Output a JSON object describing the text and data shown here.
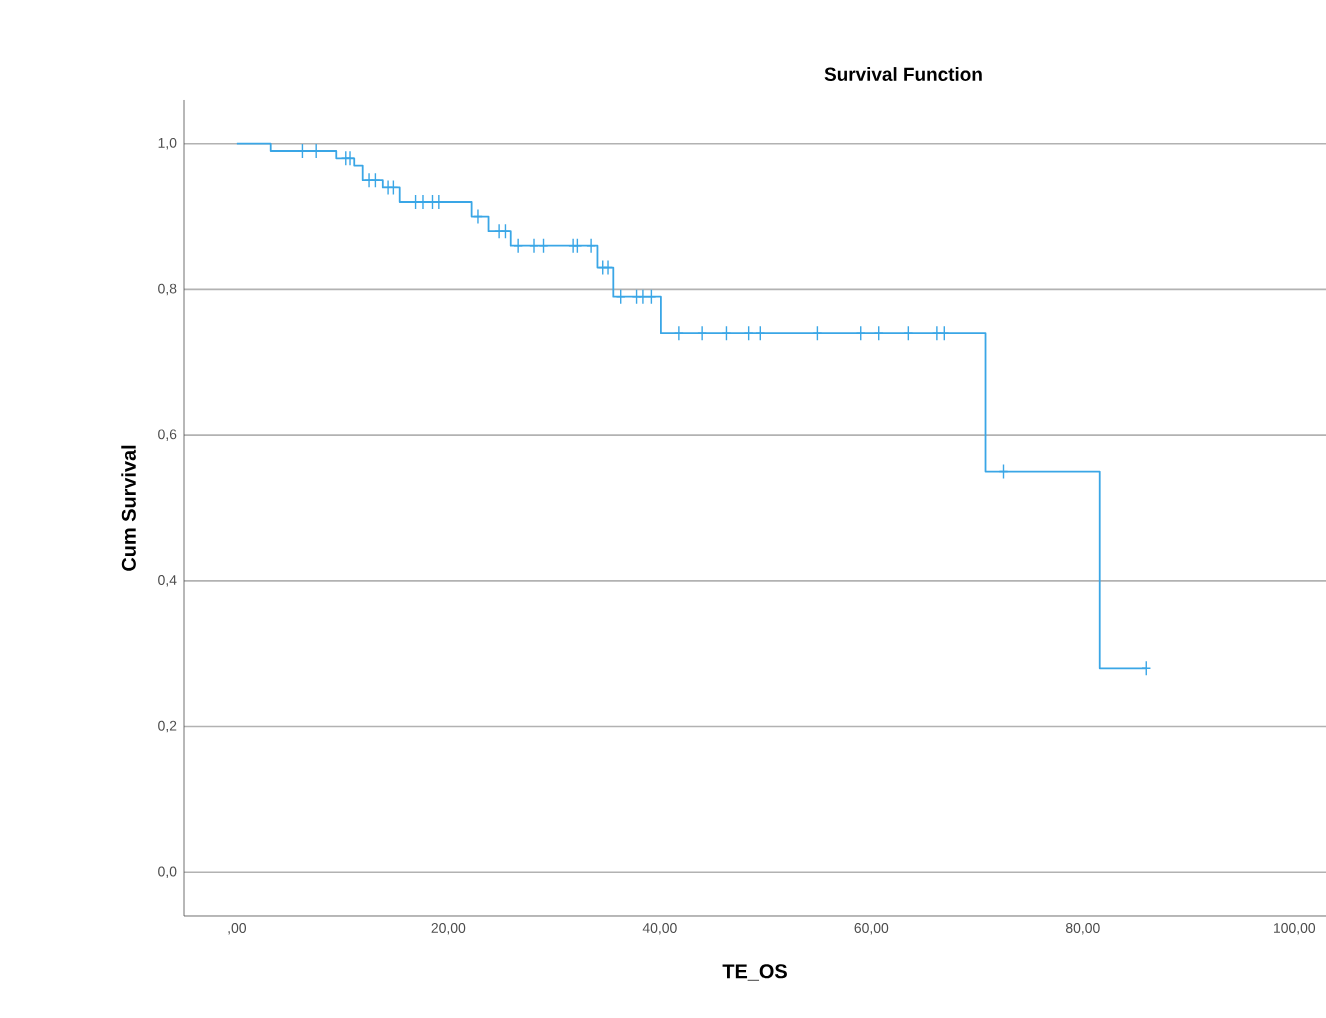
{
  "chart_data": {
    "type": "step",
    "title": "Survival Function",
    "xlabel": "TE_OS",
    "ylabel": "Cum Survival",
    "series": [
      {
        "color": "#3aa6e6",
        "x": [
          0,
          3.2,
          9.4,
          11.1,
          11.9,
          13.8,
          15.4,
          22.2,
          23.8,
          25.9,
          34.1,
          35.6,
          40.1,
          70.8,
          81.6,
          86.0
        ],
        "values": [
          1.0,
          0.99,
          0.98,
          0.97,
          0.95,
          0.94,
          0.92,
          0.9,
          0.88,
          0.86,
          0.83,
          0.79,
          0.74,
          0.55,
          0.28,
          0.28
        ]
      },
      {
        "type": "scatter",
        "marker": "cross",
        "color": "#3aa6e6",
        "x": [
          6.2,
          7.5,
          10.3,
          10.7,
          12.5,
          13.1,
          14.3,
          14.8,
          16.9,
          17.6,
          18.5,
          19.1,
          22.8,
          24.8,
          25.4,
          26.6,
          28.1,
          29.0,
          31.8,
          32.2,
          33.5,
          34.6,
          35.1,
          36.3,
          37.8,
          38.4,
          39.2,
          41.8,
          44.0,
          46.3,
          48.4,
          49.5,
          54.9,
          59.0,
          60.7,
          63.5,
          66.2,
          66.9,
          72.5,
          86.0
        ],
        "values": [
          0.99,
          0.99,
          0.98,
          0.98,
          0.95,
          0.95,
          0.94,
          0.94,
          0.92,
          0.92,
          0.92,
          0.92,
          0.9,
          0.88,
          0.88,
          0.86,
          0.86,
          0.86,
          0.86,
          0.86,
          0.86,
          0.83,
          0.83,
          0.79,
          0.79,
          0.79,
          0.79,
          0.74,
          0.74,
          0.74,
          0.74,
          0.74,
          0.74,
          0.74,
          0.74,
          0.74,
          0.74,
          0.74,
          0.55,
          0.28
        ]
      }
    ],
    "xlim": [
      -5,
      103
    ],
    "ylim": [
      -0.06,
      1.06
    ],
    "xticks": [
      {
        "value": 0,
        "label": ",00"
      },
      {
        "value": 20,
        "label": "20,00"
      },
      {
        "value": 40,
        "label": "40,00"
      },
      {
        "value": 60,
        "label": "60,00"
      },
      {
        "value": 80,
        "label": "80,00"
      },
      {
        "value": 100,
        "label": "100,00"
      }
    ],
    "yticks": [
      {
        "value": 0,
        "label": "0,0"
      },
      {
        "value": 0.2,
        "label": "0,2"
      },
      {
        "value": 0.4,
        "label": "0,4"
      },
      {
        "value": 0.6,
        "label": "0,6"
      },
      {
        "value": 0.8,
        "label": "0,8"
      },
      {
        "value": 1.0,
        "label": "1,0"
      }
    ],
    "grid": "y"
  }
}
